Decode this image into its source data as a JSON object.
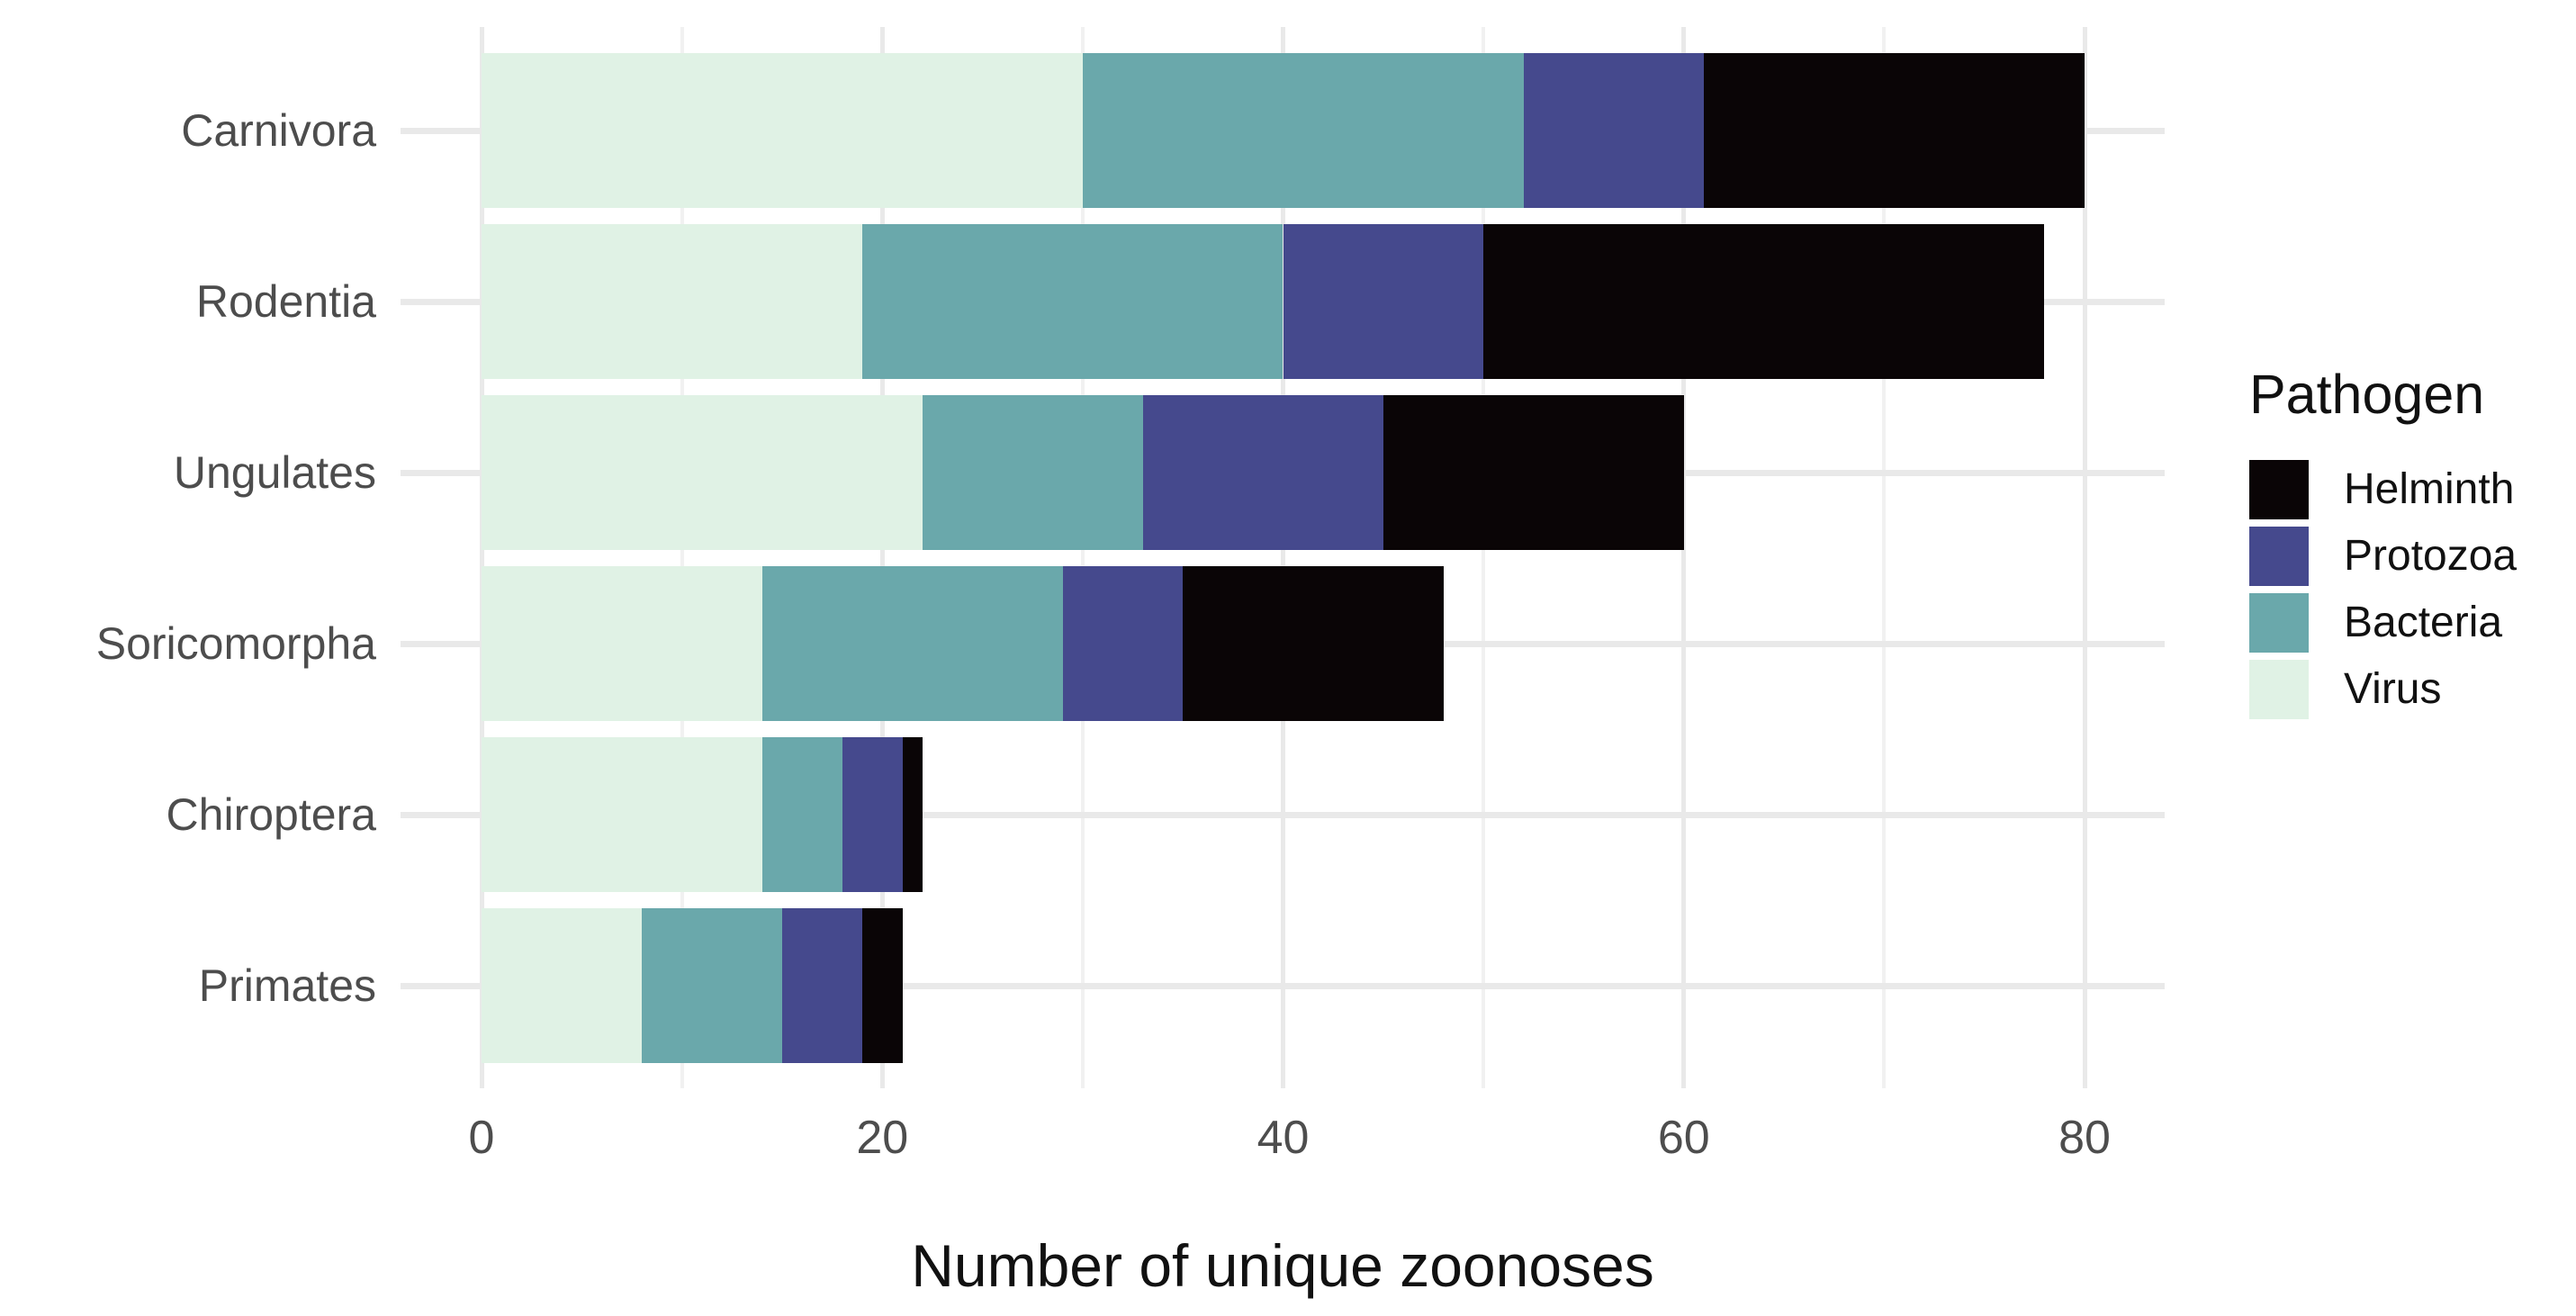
{
  "chart_data": {
    "type": "bar",
    "orientation": "horizontal",
    "stacked": true,
    "xlabel": "Number of unique zoonoses",
    "ylabel": "",
    "categories": [
      "Carnivora",
      "Rodentia",
      "Ungulates",
      "Soricomorpha",
      "Chiroptera",
      "Primates"
    ],
    "series": [
      {
        "name": "Virus",
        "color": "#e0f2e5",
        "values": [
          30,
          19,
          22,
          14,
          14,
          8
        ]
      },
      {
        "name": "Bacteria",
        "color": "#6aa8ab",
        "values": [
          22,
          21,
          11,
          15,
          4,
          7
        ]
      },
      {
        "name": "Protozoa",
        "color": "#45498d",
        "values": [
          9,
          10,
          12,
          6,
          3,
          4
        ]
      },
      {
        "name": "Helminth",
        "color": "#0a0506",
        "values": [
          19,
          28,
          15,
          13,
          1,
          2
        ]
      }
    ],
    "totals": [
      80,
      78,
      60,
      48,
      22,
      21
    ],
    "x_major_ticks": [
      0,
      20,
      40,
      60,
      80
    ],
    "x_minor_ticks": [
      10,
      30,
      50,
      70
    ],
    "xlim": [
      0,
      84
    ],
    "grid": {
      "vertical": "major+minor",
      "horizontal": "major"
    },
    "legend": {
      "title": "Pathogen",
      "position": "right",
      "entries": [
        "Helminth",
        "Protozoa",
        "Bacteria",
        "Virus"
      ]
    },
    "colors": {
      "grid_major": "#e9e9e9",
      "grid_minor": "#f1f1f1",
      "axis_text": "#4d4d4d",
      "title_text": "#111111",
      "background": "#ffffff"
    }
  }
}
